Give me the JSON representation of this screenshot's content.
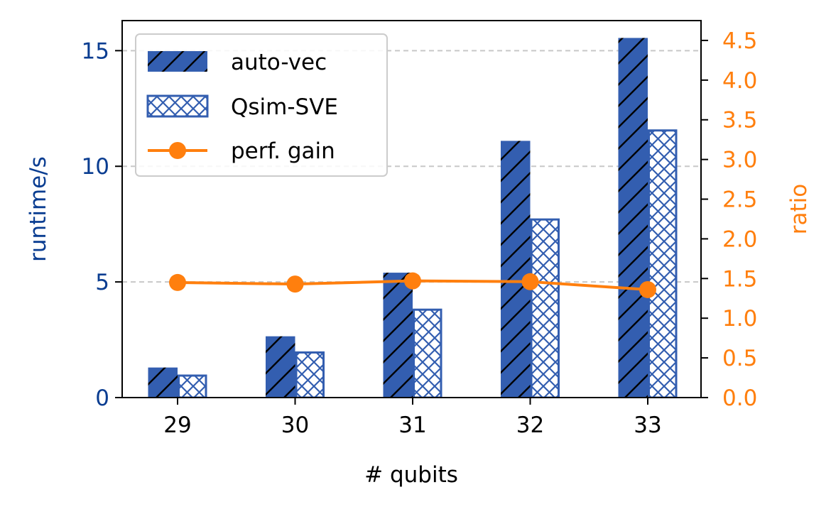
{
  "chart_data": {
    "type": "bar",
    "categories": [
      "29",
      "30",
      "31",
      "32",
      "33"
    ],
    "xlabel": "# qubits",
    "ylabel": "runtime/s",
    "y2label": "ratio",
    "ylim": [
      0,
      16.3
    ],
    "y2lim": [
      0,
      4.75
    ],
    "yticks": [
      0,
      5,
      10,
      15
    ],
    "y2ticks": [
      0.0,
      0.5,
      1.0,
      1.5,
      2.0,
      2.5,
      3.0,
      3.5,
      4.0,
      4.5
    ],
    "y2tick_labels": [
      "0.0",
      "0.5",
      "1.0",
      "1.5",
      "2.0",
      "2.5",
      "3.0",
      "3.5",
      "4.0",
      "4.5"
    ],
    "grid": "horizontal dashed",
    "legend_position": "upper-left",
    "series": [
      {
        "name": "auto-vec",
        "kind": "bar",
        "hatch": "diagonal",
        "color": "#335eb0",
        "values": [
          1.3,
          2.65,
          5.4,
          11.1,
          15.55
        ]
      },
      {
        "name": "Qsim-SVE",
        "kind": "bar",
        "hatch": "crosshatch",
        "color": "#335eb0",
        "values": [
          0.95,
          1.95,
          3.8,
          7.7,
          11.55
        ]
      },
      {
        "name": "perf. gain",
        "kind": "line",
        "axis": "right",
        "color": "#ff7f0e",
        "values": [
          1.45,
          1.43,
          1.47,
          1.46,
          1.36
        ]
      }
    ],
    "colors": {
      "left_axis": "#0a3d91",
      "right_axis": "#ff7f0e",
      "grid": "#c8c8c8"
    }
  }
}
